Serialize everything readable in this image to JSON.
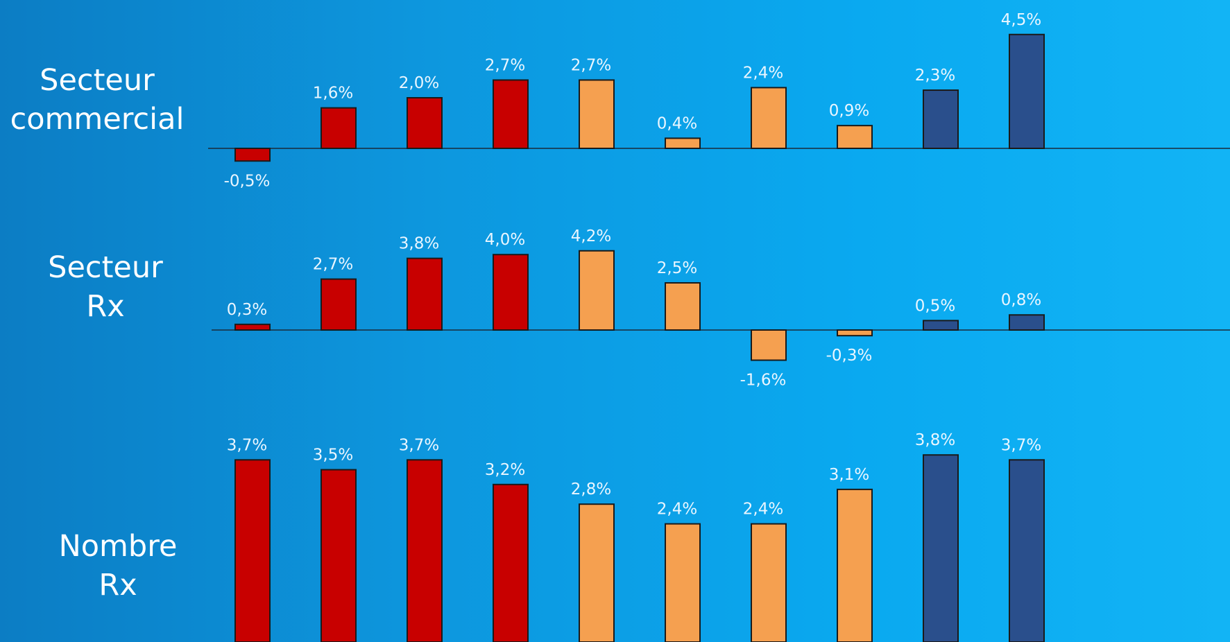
{
  "chart_data": [
    {
      "type": "bar",
      "row_label": [
        "Secteur",
        "commercial"
      ],
      "categories": [
        "",
        "",
        "",
        "",
        "",
        "",
        "",
        "",
        "",
        ""
      ],
      "values": [
        -0.5,
        1.6,
        2.0,
        2.7,
        2.7,
        0.4,
        2.4,
        0.9,
        2.3,
        4.5
      ],
      "labels": [
        "-0,5%",
        "1,6%",
        "2,0%",
        "2,7%",
        "2,7%",
        "0,4%",
        "2,4%",
        "0,9%",
        "2,3%",
        "4,5%"
      ],
      "colors": [
        "#c80000",
        "#c80000",
        "#c80000",
        "#c80000",
        "#f5a050",
        "#f5a050",
        "#f5a050",
        "#f5a050",
        "#2a4f8c",
        "#2a4f8c"
      ],
      "grid": false,
      "legend": "none"
    },
    {
      "type": "bar",
      "row_label": [
        "Secteur",
        "Rx"
      ],
      "categories": [
        "",
        "",
        "",
        "",
        "",
        "",
        "",
        "",
        "",
        ""
      ],
      "values": [
        0.3,
        2.7,
        3.8,
        4.0,
        4.2,
        2.5,
        -1.6,
        -0.3,
        0.5,
        0.8
      ],
      "labels": [
        "0,3%",
        "2,7%",
        "3,8%",
        "4,0%",
        "4,2%",
        "2,5%",
        "-1,6%",
        "-0,3%",
        "0,5%",
        "0,8%"
      ],
      "colors": [
        "#c80000",
        "#c80000",
        "#c80000",
        "#c80000",
        "#f5a050",
        "#f5a050",
        "#f5a050",
        "#f5a050",
        "#2a4f8c",
        "#2a4f8c"
      ],
      "grid": false,
      "legend": "none"
    },
    {
      "type": "bar",
      "row_label": [
        "Nombre",
        "Rx"
      ],
      "categories": [
        "",
        "",
        "",
        "",
        "",
        "",
        "",
        "",
        "",
        ""
      ],
      "values": [
        3.7,
        3.5,
        3.7,
        3.2,
        2.8,
        2.4,
        2.4,
        3.1,
        3.8,
        3.7
      ],
      "labels": [
        "3,7%",
        "3,5%",
        "3,7%",
        "3,2%",
        "2,8%",
        "2,4%",
        "2,4%",
        "3,1%",
        "3,8%",
        "3,7%"
      ],
      "colors": [
        "#c80000",
        "#c80000",
        "#c80000",
        "#c80000",
        "#f5a050",
        "#f5a050",
        "#f5a050",
        "#f5a050",
        "#2a4f8c",
        "#2a4f8c"
      ],
      "grid": false,
      "legend": "none"
    }
  ]
}
